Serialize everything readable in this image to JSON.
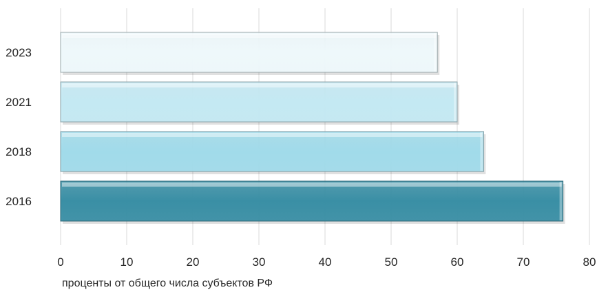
{
  "chart_data": {
    "type": "bar",
    "orientation": "horizontal",
    "categories": [
      "2023",
      "2021",
      "2018",
      "2016"
    ],
    "values": [
      57,
      60,
      64,
      76
    ],
    "xlim": [
      0,
      80
    ],
    "xticks": [
      "0",
      "10",
      "20",
      "30",
      "40",
      "50",
      "60",
      "70",
      "80"
    ],
    "xlabel": "проценты от общего числа субъектов РФ",
    "title": "",
    "grid": "vertical",
    "colors": [
      "#eef8fb",
      "#c4e9f3",
      "#a1dbea",
      "#3a8fa5"
    ],
    "edge_colors": [
      "#9aa7aa",
      "#8aa0a6",
      "#7e9aa2",
      "#2a6575"
    ]
  }
}
